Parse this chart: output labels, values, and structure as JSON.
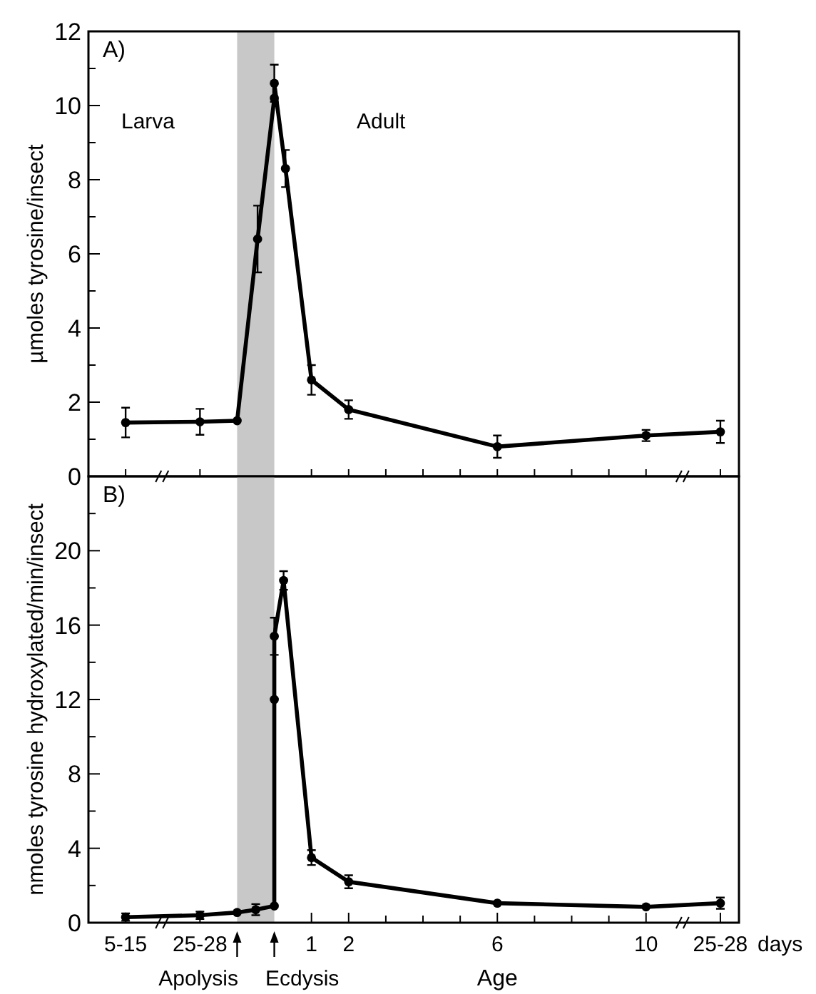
{
  "chart_data": [
    {
      "type": "line",
      "title": "A)",
      "ylabel": "µmoles tyrosine/insect",
      "xlim": [
        -5,
        12.5
      ],
      "ylim": [
        0,
        12
      ],
      "xticks": [
        {
          "value": -4,
          "label": null
        },
        {
          "value": -2,
          "label": null
        },
        {
          "value": 1,
          "label": null
        },
        {
          "value": 2,
          "label": null
        },
        {
          "value": 3,
          "label": null
        },
        {
          "value": 4,
          "label": null
        },
        {
          "value": 5,
          "label": null
        },
        {
          "value": 6,
          "label": null
        },
        {
          "value": 7,
          "label": null
        },
        {
          "value": 8,
          "label": null
        },
        {
          "value": 9,
          "label": null
        },
        {
          "value": 10,
          "label": null
        },
        {
          "value": 12,
          "label": null
        }
      ],
      "yticks": [
        0,
        {
          "value": 1,
          "label": null
        },
        2,
        {
          "value": 3,
          "label": null
        },
        4,
        {
          "value": 5,
          "label": null
        },
        6,
        {
          "value": 7,
          "label": null
        },
        8,
        {
          "value": 9,
          "label": null
        },
        10,
        {
          "value": 11,
          "label": null
        },
        12
      ],
      "tick_labels": "y",
      "marker": "circle",
      "line_style": "solid",
      "bands": [
        {
          "axis": "x",
          "from": -1,
          "to": 0,
          "color": "#c8c8c8"
        }
      ],
      "annotations": [
        "Larva",
        "Adult"
      ],
      "series": [
        {
          "color": "#000000",
          "x": [
            -4,
            -2,
            -1,
            -0.45,
            0,
            0,
            0.3,
            1,
            2,
            6,
            10,
            12
          ],
          "values": [
            1.45,
            1.47,
            1.5,
            6.4,
            10.2,
            10.6,
            8.3,
            2.6,
            1.8,
            0.8,
            1.1,
            1.2
          ],
          "errors": [
            0.4,
            0.35,
            null,
            0.9,
            null,
            0.5,
            0.5,
            0.4,
            0.25,
            0.3,
            0.15,
            0.3
          ]
        }
      ]
    },
    {
      "type": "line",
      "title": "B)",
      "ylabel": "nmoles tyrosine hydroxylated/min/insect",
      "xlabel": "Age",
      "xlim": [
        -5,
        12.5
      ],
      "ylim": [
        0,
        24
      ],
      "xticks": [
        {
          "value": -4,
          "label": "5-15"
        },
        {
          "value": -2,
          "label": "25-28"
        },
        {
          "value": 1,
          "label": "1"
        },
        {
          "value": 2,
          "label": "2"
        },
        {
          "value": 3,
          "label": null
        },
        {
          "value": 4,
          "label": null
        },
        {
          "value": 5,
          "label": null
        },
        {
          "value": 6,
          "label": "6"
        },
        {
          "value": 7,
          "label": null
        },
        {
          "value": 8,
          "label": null
        },
        {
          "value": 9,
          "label": null
        },
        {
          "value": 10,
          "label": "10"
        },
        {
          "value": 12,
          "label": "25-28"
        }
      ],
      "yticks": [
        0,
        {
          "value": 2,
          "label": null
        },
        4,
        {
          "value": 6,
          "label": null
        },
        8,
        {
          "value": 10,
          "label": null
        },
        12,
        {
          "value": 14,
          "label": null
        },
        16,
        {
          "value": 18,
          "label": null
        },
        20,
        {
          "value": 22,
          "label": null
        }
      ],
      "marker": "circle",
      "line_style": "solid",
      "bands": [
        {
          "axis": "x",
          "from": -1,
          "to": 0,
          "color": "#c8c8c8"
        }
      ],
      "annotations": [
        "days",
        "Apolysis",
        "Ecdysis"
      ],
      "series": [
        {
          "color": "#000000",
          "x": [
            -4,
            -2,
            -1,
            -0.5,
            0,
            0,
            0,
            0.25,
            1,
            2,
            6,
            10,
            12
          ],
          "values": [
            0.3,
            0.4,
            0.55,
            0.7,
            0.9,
            12,
            15.4,
            18.4,
            3.5,
            2.2,
            1.05,
            0.85,
            1.05
          ],
          "errors": [
            0.2,
            0.2,
            null,
            0.3,
            null,
            null,
            1,
            0.5,
            0.4,
            0.35,
            null,
            null,
            0.3
          ]
        }
      ]
    }
  ]
}
